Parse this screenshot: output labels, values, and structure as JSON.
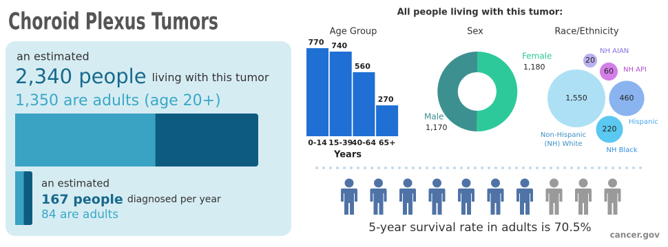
{
  "header": {
    "title": "Choroid Plexus Tumors",
    "source": "cancer.gov"
  },
  "panel": {
    "estimated_1": "an estimated",
    "people": "2,340 people",
    "people_suffix": "living with this tumor",
    "adults": "1,350 are adults (age 20+)",
    "bar": {
      "total": 2340,
      "adults": 1350
    },
    "estimated_2": "an estimated",
    "diagnosed": "167 people",
    "diagnosed_suffix": "diagnosed per year",
    "diagnosed_adults": "84 are adults",
    "small_bar": {
      "total": 167,
      "adults": 84
    }
  },
  "heading": "All people living with this tumor:",
  "chart_data": [
    {
      "type": "bar",
      "title": "Age Group",
      "categories": [
        "0-14",
        "15-39",
        "40-64",
        "65+"
      ],
      "values": [
        770,
        740,
        560,
        270
      ],
      "x_label": "Years",
      "color": "#1f6fd4"
    },
    {
      "type": "pie",
      "title": "Sex",
      "categories": [
        "Female",
        "Male"
      ],
      "values": [
        1180,
        1170
      ],
      "value_labels": [
        "1,180",
        "1,170"
      ],
      "colors": [
        "#2ec99a",
        "#3d9090"
      ]
    },
    {
      "type": "bubble",
      "title": "Race/Ethnicity",
      "categories": [
        "Non-Hispanic (NH) White",
        "NH AIAN",
        "NH API",
        "Hispanic",
        "NH Black"
      ],
      "values": [
        1550,
        20,
        60,
        460,
        220
      ],
      "value_labels": [
        "1,550",
        "20",
        "60",
        "460",
        "220"
      ],
      "colors": [
        "#aee0f5",
        "#b9b0ee",
        "#d37ee8",
        "#8ab4f0",
        "#5ac8f0"
      ],
      "label_colors": [
        "#3d8fc4",
        "#8a6fe0",
        "#b24fd0",
        "#4aa8e8",
        "#2f8fe0"
      ]
    }
  ],
  "survival": {
    "text": "5-year survival rate in adults is 70.5%",
    "rate": 70.5,
    "colors": [
      "#4f73a6",
      "#9a9a9a"
    ]
  }
}
